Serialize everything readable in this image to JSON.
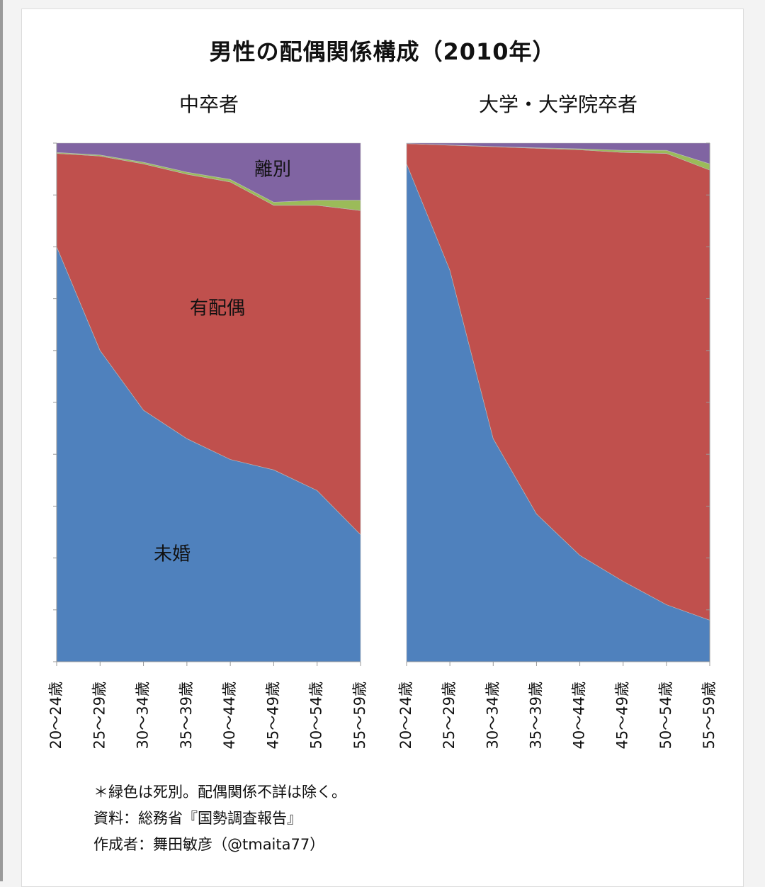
{
  "title": "男性の配偶関係構成（2010年）",
  "chart_data": [
    {
      "type": "area",
      "stacked": "percent",
      "subtitle": "中卒者",
      "categories": [
        "20〜24歳",
        "25〜29歳",
        "30〜34歳",
        "35〜39歳",
        "40〜44歳",
        "45〜49歳",
        "50〜54歳",
        "55〜59歳"
      ],
      "ylim": [
        0,
        100
      ],
      "series": [
        {
          "name": "未婚",
          "color": "#4f81bd",
          "values": [
            80,
            60,
            48.5,
            43,
            39,
            37,
            33,
            24.5
          ]
        },
        {
          "name": "有配偶",
          "color": "#c0504d",
          "values": [
            18,
            37.5,
            47.5,
            51,
            53.5,
            51,
            55,
            62.5
          ]
        },
        {
          "name": "",
          "color": "#9bbb59",
          "values": [
            0.2,
            0.2,
            0.3,
            0.4,
            0.5,
            0.6,
            1.0,
            2.0
          ]
        },
        {
          "name": "離別",
          "color": "#8064a2",
          "values": [
            1.8,
            2.3,
            3.7,
            5.6,
            7.0,
            11.4,
            11.0,
            11.0
          ]
        }
      ],
      "annotations": [
        "離別",
        "有配偶",
        "未婚"
      ]
    },
    {
      "type": "area",
      "stacked": "percent",
      "subtitle": "大学・大学院卒者",
      "categories": [
        "20〜24歳",
        "25〜29歳",
        "30〜34歳",
        "35〜39歳",
        "40〜44歳",
        "45〜49歳",
        "50〜54歳",
        "55〜59歳"
      ],
      "ylim": [
        0,
        100
      ],
      "series": [
        {
          "name": "未婚",
          "color": "#4f81bd",
          "values": [
            96,
            75.5,
            43,
            28.5,
            20.5,
            15.5,
            11,
            8
          ]
        },
        {
          "name": "有配偶",
          "color": "#c0504d",
          "values": [
            3.9,
            24.1,
            56.3,
            70.5,
            78.2,
            82.7,
            87.0,
            86.8
          ]
        },
        {
          "name": "",
          "color": "#9bbb59",
          "values": [
            0.0,
            0.05,
            0.05,
            0.1,
            0.2,
            0.4,
            0.6,
            1.2
          ]
        },
        {
          "name": "",
          "color": "#8064a2",
          "values": [
            0.1,
            0.35,
            0.65,
            0.9,
            1.1,
            1.4,
            1.4,
            4.0
          ]
        }
      ]
    }
  ],
  "footnotes": [
    "＊緑色は死別。配偶関係不詳は除く。",
    "資料：総務省『国勢調査報告』",
    "作成者：舞田敏彦（@tmaita77）"
  ]
}
